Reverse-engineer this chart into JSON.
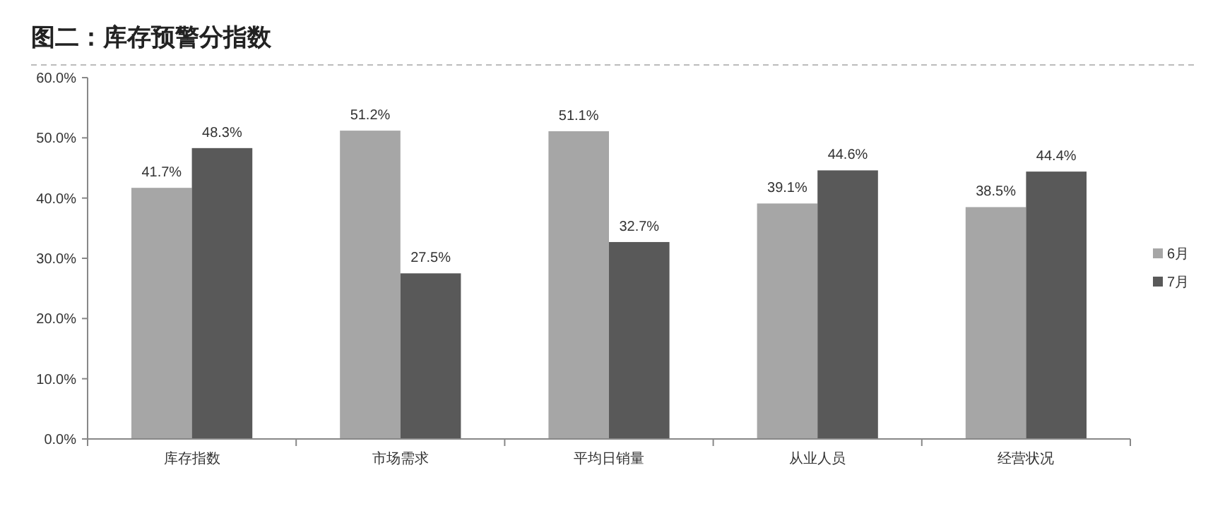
{
  "chart_data": {
    "type": "bar",
    "title": "图二：库存预警分指数",
    "categories": [
      "库存指数",
      "市场需求",
      "平均日销量",
      "从业人员",
      "经营状况"
    ],
    "series": [
      {
        "name": "6月",
        "color": "#a6a6a6",
        "values": [
          41.7,
          51.2,
          51.1,
          39.1,
          38.5
        ],
        "value_labels": [
          "41.7%",
          "51.2%",
          "51.1%",
          "39.1%",
          "38.5%"
        ]
      },
      {
        "name": "7月",
        "color": "#595959",
        "values": [
          48.3,
          27.5,
          32.7,
          44.6,
          44.4
        ],
        "value_labels": [
          "48.3%",
          "27.5%",
          "32.7%",
          "44.6%",
          "44.4%"
        ]
      }
    ],
    "ylim": [
      0,
      60
    ],
    "yticks": [
      {
        "value": 0,
        "label": "0.0%"
      },
      {
        "value": 10,
        "label": "10.0%"
      },
      {
        "value": 20,
        "label": "20.0%"
      },
      {
        "value": 30,
        "label": "30.0%"
      },
      {
        "value": 40,
        "label": "40.0%"
      },
      {
        "value": 50,
        "label": "50.0%"
      },
      {
        "value": 60,
        "label": "60.0%"
      }
    ],
    "grid": false,
    "legend": "right"
  }
}
